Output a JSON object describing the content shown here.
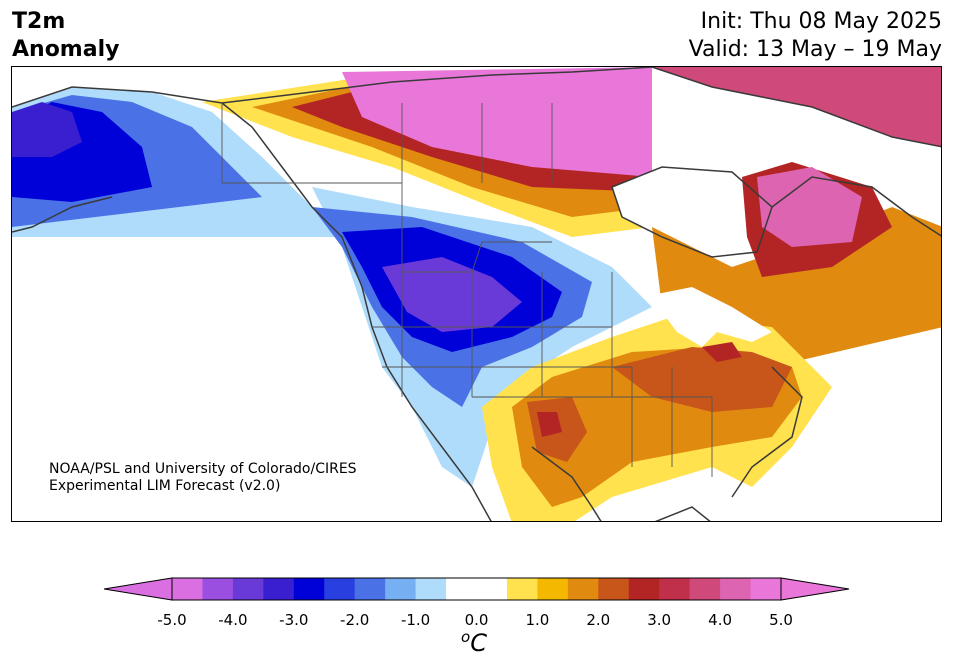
{
  "title": {
    "left_line1": "T2m",
    "left_line2": "Anomaly",
    "right_line1": "Init: Thu 08 May 2025",
    "right_line2": "Valid: 13 May – 19 May"
  },
  "credit": {
    "line1": "NOAA/PSL and University of Colorado/CIRES",
    "line2": "Experimental LIM Forecast (v2.0)"
  },
  "colorbar": {
    "ticks": [
      "-5.0",
      "-4.0",
      "-3.0",
      "-2.0",
      "-1.0",
      "0.0",
      "1.0",
      "2.0",
      "3.0",
      "4.0",
      "5.0"
    ],
    "units_symbol": "o",
    "units_letter": "C",
    "colors": [
      "#d96fe0",
      "#9b4fe0",
      "#6a3ad9",
      "#3a1fd1",
      "#0000d9",
      "#2a3fe0",
      "#4a72e6",
      "#76b0f2",
      "#b0dcfb",
      "#ffffff",
      "#ffffff",
      "#ffe24d",
      "#f5b800",
      "#e08a10",
      "#c8561a",
      "#b32424",
      "#c0304a",
      "#cf4a7a",
      "#dd64b0",
      "#e977d9"
    ],
    "left_extend_color": "#d96fe0",
    "right_extend_color": "#e977d9"
  },
  "map": {
    "region": "North America",
    "variable": "T2m anomaly"
  }
}
